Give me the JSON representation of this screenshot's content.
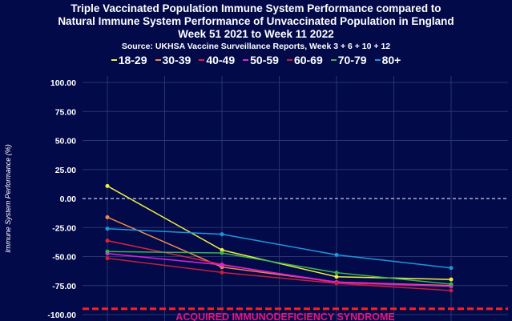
{
  "chart_data": {
    "type": "line",
    "title_lines": [
      "Triple Vaccinated Population Immune System Performance compared to",
      "Natural Immune System Performance of Unvaccinated Population in England",
      "Week 51 2021 to Week 11 2022"
    ],
    "subtitle": "Source: UKHSA Vaccine Surveillance Reports, Week 3 + 6 + 10 + 12",
    "ylabel": "Immune System Performance (%)",
    "ylim": [
      -100,
      100
    ],
    "yticks": [
      "100.00",
      "75.00",
      "50.00",
      "25.00",
      "0.00",
      "-25.00",
      "-50.00",
      "-75.00",
      "-100.00"
    ],
    "ytick_values": [
      100,
      75,
      50,
      25,
      0,
      -25,
      -50,
      -75,
      -100
    ],
    "grid": true,
    "legend_placement": "top",
    "x": [
      1,
      2,
      3,
      4
    ],
    "reference_lines": [
      {
        "value": 0,
        "style": "dashed",
        "color": "#c8d0f0"
      },
      {
        "value": -95,
        "style": "dashed",
        "color": "#ff2020",
        "label": "ACQUIRED IMMUNODEFICIENCY SYNDROME"
      }
    ],
    "series": [
      {
        "name": "18-29",
        "color": "#f0f03c",
        "values": [
          10.8,
          -44.4,
          -67.4,
          -69.7
        ]
      },
      {
        "name": "30-39",
        "color": "#f08a4b",
        "values": [
          -16.1,
          -59.1,
          -72.0,
          -75.0
        ]
      },
      {
        "name": "40-49",
        "color": "#e0203c",
        "values": [
          -36.3,
          -56.8,
          -72.7,
          -75.6
        ]
      },
      {
        "name": "50-59",
        "color": "#e020e0",
        "values": [
          -47.4,
          -57.2,
          -72.0,
          -75.6
        ]
      },
      {
        "name": "60-69",
        "color": "#c81e3c",
        "values": [
          -51.5,
          -63.7,
          -73.1,
          -79.3
        ]
      },
      {
        "name": "70-79",
        "color": "#3cb450",
        "values": [
          -45.7,
          -46.9,
          -63.9,
          -73.8
        ]
      },
      {
        "name": "80+",
        "color": "#1e96dc",
        "values": [
          -26.0,
          -30.8,
          -48.5,
          -59.8
        ]
      }
    ]
  }
}
